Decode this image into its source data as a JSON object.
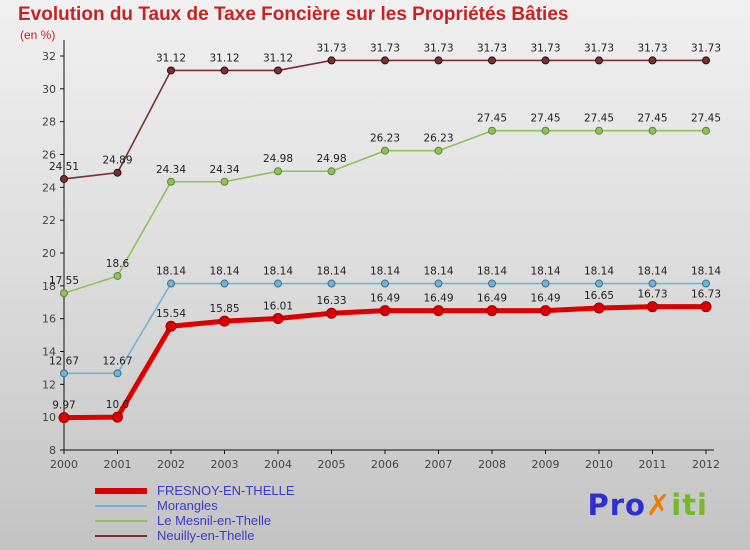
{
  "chart_data": {
    "type": "line",
    "title": "Evolution du Taux de Taxe Foncière sur les Propriétés Bâties",
    "subtitle": "(en %)",
    "x": [
      2000,
      2001,
      2002,
      2003,
      2004,
      2005,
      2006,
      2007,
      2008,
      2009,
      2010,
      2011,
      2012
    ],
    "ylim": [
      8,
      32
    ],
    "ytick_step": 2,
    "grid": "off",
    "legend_position": "bottom-left",
    "series": [
      {
        "name": "FRESNOY-EN-THELLE",
        "color": "#dd0000",
        "marker_edge": "#990000",
        "width": 5,
        "marker_r": 5,
        "values": [
          9.97,
          10.0,
          15.54,
          15.85,
          16.01,
          16.33,
          16.49,
          16.49,
          16.49,
          16.49,
          16.65,
          16.73,
          16.73
        ],
        "labels": [
          "9.97",
          "10.0",
          "15.54",
          "15.85",
          "16.01",
          "16.33",
          "16.49",
          "16.49",
          "16.49",
          "16.49",
          "16.65",
          "16.73",
          "16.73"
        ]
      },
      {
        "name": "Morangles",
        "color": "#74b2d4",
        "marker_edge": "#3c6f93",
        "width": 1.6,
        "marker_r": 3.5,
        "values": [
          12.67,
          12.67,
          18.14,
          18.14,
          18.14,
          18.14,
          18.14,
          18.14,
          18.14,
          18.14,
          18.14,
          18.14,
          18.14
        ],
        "labels": [
          "12.67",
          "12.67",
          "18.14",
          "18.14",
          "18.14",
          "18.14",
          "18.14",
          "18.14",
          "18.14",
          "18.14",
          "18.14",
          "18.14",
          "18.14"
        ]
      },
      {
        "name": "Le Mesnil-en-Thelle",
        "color": "#8fc05e",
        "marker_edge": "#5a8a30",
        "width": 1.6,
        "marker_r": 3.5,
        "values": [
          17.55,
          18.6,
          24.34,
          24.34,
          24.98,
          24.98,
          26.23,
          26.23,
          27.45,
          27.45,
          27.45,
          27.45,
          27.45
        ],
        "labels": [
          "17.55",
          "18.6",
          "24.34",
          "24.34",
          "24.98",
          "24.98",
          "26.23",
          "26.23",
          "27.45",
          "27.45",
          "27.45",
          "27.45",
          "27.45"
        ]
      },
      {
        "name": "Neuilly-en-Thelle",
        "color": "#7a3030",
        "marker_edge": "#2a0d0d",
        "width": 1.6,
        "marker_r": 3.5,
        "values": [
          24.51,
          24.89,
          31.12,
          31.12,
          31.12,
          31.73,
          31.73,
          31.73,
          31.73,
          31.73,
          31.73,
          31.73,
          31.73
        ],
        "labels": [
          "24.51",
          "24.89",
          "31.12",
          "31.12",
          "31.12",
          "31.73",
          "31.73",
          "31.73",
          "31.73",
          "31.73",
          "31.73",
          "31.73",
          "31.73"
        ]
      }
    ]
  },
  "logo": {
    "pro": "Pro",
    "x": "✗",
    "iti": "iti"
  }
}
